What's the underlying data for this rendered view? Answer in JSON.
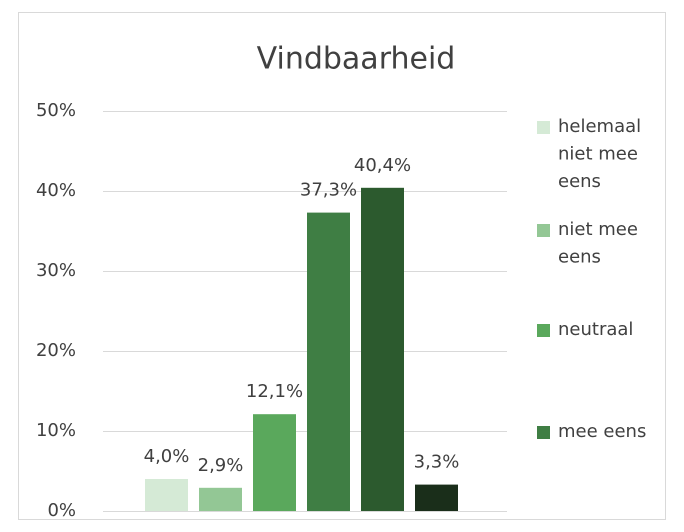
{
  "chart_data": {
    "type": "bar",
    "title": "Vindbaarheid",
    "series": [
      {
        "name": "helemaal niet mee eens",
        "color": "#d5ead6",
        "values": [
          4.0
        ],
        "value_labels": [
          "4,0%"
        ]
      },
      {
        "name": "niet mee eens",
        "color": "#93c795",
        "values": [
          2.9
        ],
        "value_labels": [
          "2,9%"
        ]
      },
      {
        "name": "neutraal",
        "color": "#5aa85c",
        "values": [
          12.1
        ],
        "value_labels": [
          "12,1%"
        ]
      },
      {
        "name": "mee eens",
        "color": "#3f7e44",
        "values": [
          37.3
        ],
        "value_labels": [
          "37,3%"
        ]
      },
      {
        "name": null,
        "color": "#2c5a2e",
        "values": [
          40.4
        ],
        "value_labels": [
          "40,4%"
        ]
      },
      {
        "name": null,
        "color": "#1a2e1a",
        "values": [
          3.3
        ],
        "value_labels": [
          "3,3%"
        ]
      }
    ],
    "ylim": [
      0,
      50
    ],
    "yticks": [
      {
        "value": 0,
        "label": "0%"
      },
      {
        "value": 10,
        "label": "10%"
      },
      {
        "value": 20,
        "label": "20%"
      },
      {
        "value": 30,
        "label": "30%"
      },
      {
        "value": 40,
        "label": "40%"
      },
      {
        "value": 50,
        "label": "50%"
      }
    ],
    "grid": true,
    "legend": "right"
  }
}
